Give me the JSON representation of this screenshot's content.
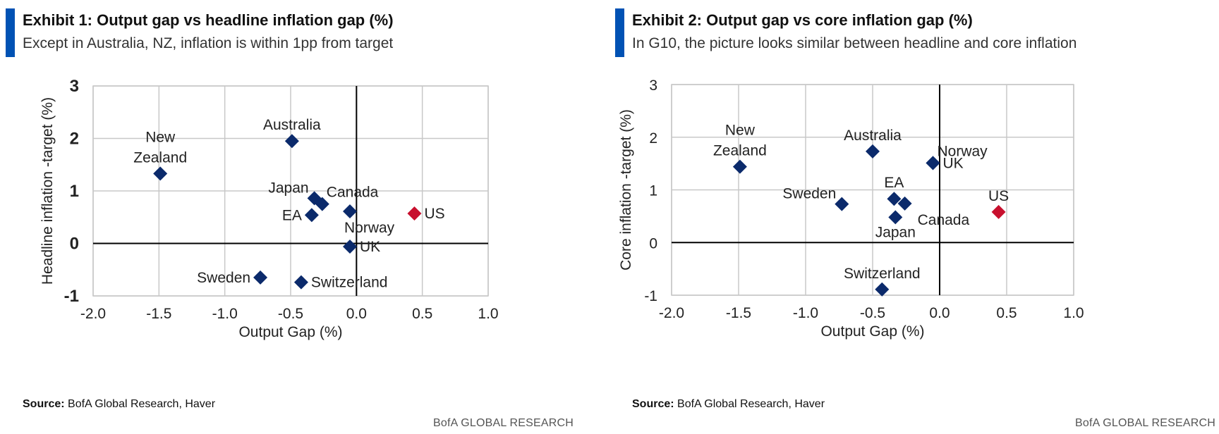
{
  "brand": "BofA GLOBAL RESEARCH",
  "colors": {
    "accent": "#0052b4",
    "point_default": "#0b2a6b",
    "point_highlight": "#c8102e",
    "grid": "#c8c8c8",
    "axis": "#000000"
  },
  "exhibits": [
    {
      "title": "Exhibit 1: Output gap vs headline inflation gap (%)",
      "subtitle": "Except in Australia, NZ, inflation is within 1pp from target",
      "source_label": "Source:",
      "source_text": " BofA Global Research, Haver",
      "brand": "BofA GLOBAL RESEARCH"
    },
    {
      "title": "Exhibit 2: Output gap vs core inflation gap (%)",
      "subtitle": "In G10, the picture looks similar between headline and core inflation",
      "source_label": "Source:",
      "source_text": " BofA Global Research, Haver",
      "brand": "BofA GLOBAL RESEARCH"
    }
  ],
  "chart_data": [
    {
      "type": "scatter",
      "title": "Exhibit 1: Output gap vs headline inflation gap (%)",
      "xlabel": "Output Gap (%)",
      "ylabel": "Headline inflation -target (%)",
      "xlim": [
        -2.0,
        1.0
      ],
      "ylim": [
        -1,
        3
      ],
      "xticks": [
        "-2.0",
        "-1.5",
        "-1.0",
        "-0.5",
        "0.0",
        "0.5",
        "1.0"
      ],
      "yticks": [
        "3",
        "2",
        "1",
        "0",
        "-1"
      ],
      "xtick_values": [
        -2.0,
        -1.5,
        -1.0,
        -0.5,
        0.0,
        0.5,
        1.0
      ],
      "ytick_values": [
        3,
        2,
        1,
        0,
        -1
      ],
      "grid": true,
      "points": [
        {
          "label": "New Zealand",
          "x": -1.49,
          "y": 1.33,
          "highlight": false,
          "label_pos": "above"
        },
        {
          "label": "Australia",
          "x": -0.49,
          "y": 1.95,
          "highlight": false,
          "label_pos": "above"
        },
        {
          "label": "Japan",
          "x": -0.32,
          "y": 0.86,
          "highlight": false,
          "label_pos": "upper-left"
        },
        {
          "label": "Canada",
          "x": -0.26,
          "y": 0.75,
          "highlight": false,
          "label_pos": "upper-right"
        },
        {
          "label": "EA",
          "x": -0.34,
          "y": 0.54,
          "highlight": false,
          "label_pos": "left"
        },
        {
          "label": "Norway",
          "x": -0.05,
          "y": 0.61,
          "highlight": false,
          "label_pos": "below-right"
        },
        {
          "label": "UK",
          "x": -0.05,
          "y": -0.06,
          "highlight": false,
          "label_pos": "right"
        },
        {
          "label": "US",
          "x": 0.44,
          "y": 0.57,
          "highlight": true,
          "label_pos": "right"
        },
        {
          "label": "Sweden",
          "x": -0.73,
          "y": -0.65,
          "highlight": false,
          "label_pos": "left"
        },
        {
          "label": "Switzerland",
          "x": -0.42,
          "y": -0.74,
          "highlight": false,
          "label_pos": "right"
        }
      ]
    },
    {
      "type": "scatter",
      "title": "Exhibit 2: Output gap vs core inflation gap (%)",
      "xlabel": "Output Gap (%)",
      "ylabel": "Core inflation -target (%)",
      "xlim": [
        -2.0,
        1.0
      ],
      "ylim": [
        -1,
        3
      ],
      "xticks": [
        "-2.0",
        "-1.5",
        "-1.0",
        "-0.5",
        "0.0",
        "0.5",
        "1.0"
      ],
      "yticks": [
        "3",
        "2",
        "1",
        "0",
        "-1"
      ],
      "xtick_values": [
        -2.0,
        -1.5,
        -1.0,
        -0.5,
        0.0,
        0.5,
        1.0
      ],
      "ytick_values": [
        3,
        2,
        1,
        0,
        -1
      ],
      "grid": true,
      "points": [
        {
          "label": "New Zealand",
          "x": -1.49,
          "y": 1.44,
          "highlight": false,
          "label_pos": "above"
        },
        {
          "label": "Australia",
          "x": -0.5,
          "y": 1.73,
          "highlight": false,
          "label_pos": "above"
        },
        {
          "label": "Norway",
          "x": -0.05,
          "y": 1.51,
          "highlight": false,
          "label_pos": "upper-right"
        },
        {
          "label": "UK",
          "x": -0.05,
          "y": 1.51,
          "highlight": false,
          "label_pos": "right"
        },
        {
          "label": "Sweden",
          "x": -0.73,
          "y": 0.73,
          "highlight": false,
          "label_pos": "upper-left"
        },
        {
          "label": "EA",
          "x": -0.34,
          "y": 0.83,
          "highlight": false,
          "label_pos": "above"
        },
        {
          "label": "Canada",
          "x": -0.26,
          "y": 0.74,
          "highlight": false,
          "label_pos": "lower-right"
        },
        {
          "label": "Japan",
          "x": -0.33,
          "y": 0.48,
          "highlight": false,
          "label_pos": "below"
        },
        {
          "label": "US",
          "x": 0.44,
          "y": 0.58,
          "highlight": true,
          "label_pos": "above"
        },
        {
          "label": "Switzerland",
          "x": -0.43,
          "y": -0.89,
          "highlight": false,
          "label_pos": "above"
        }
      ]
    }
  ]
}
